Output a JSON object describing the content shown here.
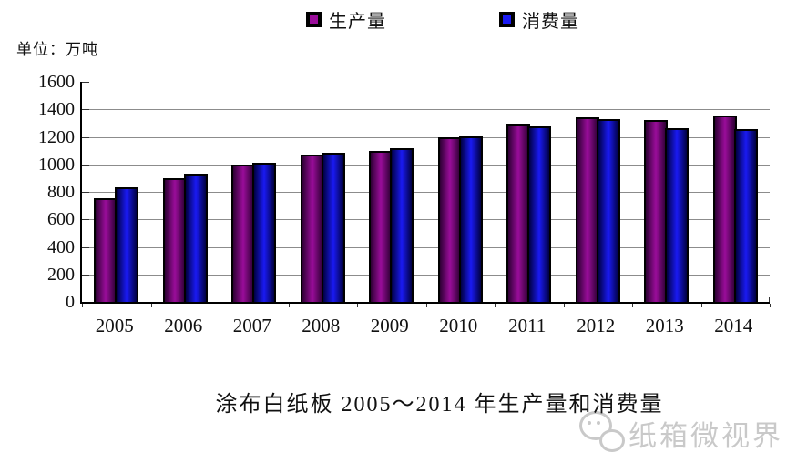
{
  "unit_label": "单位：万吨",
  "title": "涂布白纸板 2005～2014 年生产量和消费量",
  "watermark": {
    "text": "纸箱微视界",
    "logo": "chat-bubbles-logo",
    "color": "#c9c9c9"
  },
  "colors": {
    "grid": "#8c8c8c",
    "axis": "#000000"
  },
  "chart_data": {
    "type": "bar",
    "title": "涂布白纸板 2005～2014 年生产量和消费量",
    "ylabel": "单位：万吨",
    "xlabel": "",
    "ylim": [
      0,
      1600
    ],
    "y_ticks": [
      1600,
      1400,
      1200,
      1000,
      800,
      600,
      400,
      200,
      0
    ],
    "grid": "horizontal",
    "legend_position": "top",
    "categories": [
      "2005",
      "2006",
      "2007",
      "2008",
      "2009",
      "2010",
      "2011",
      "2012",
      "2013",
      "2014"
    ],
    "series": [
      {
        "name": "生产量",
        "values": [
          755,
          900,
          1000,
          1070,
          1100,
          1200,
          1295,
          1345,
          1320,
          1355
        ],
        "color_mid": "#9A0D9A",
        "color_edge": "#2E0034"
      },
      {
        "name": "消费量",
        "values": [
          830,
          930,
          1010,
          1085,
          1115,
          1205,
          1275,
          1330,
          1260,
          1255
        ],
        "color_mid": "#1A1AF2",
        "color_edge": "#000042"
      }
    ]
  }
}
